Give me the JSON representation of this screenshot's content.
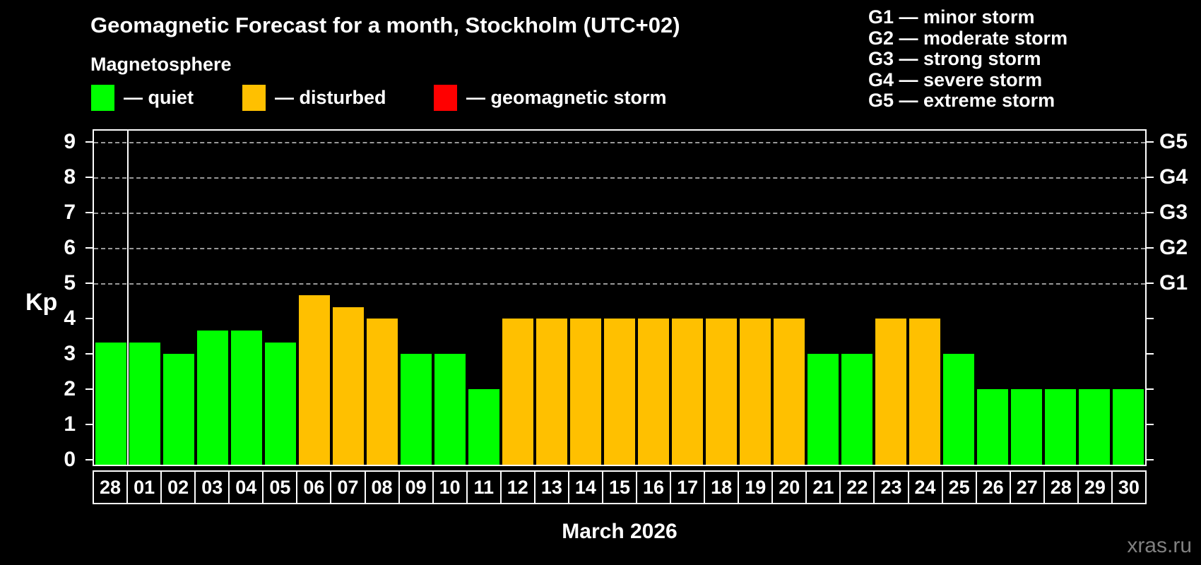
{
  "title": "Geomagnetic Forecast for a month, Stockholm (UTC+02)",
  "subtitle": "Magnetosphere",
  "kp_axis_label": "Kp",
  "month_label": "March 2026",
  "watermark": "xras.ru",
  "legend": {
    "items": [
      {
        "name": "quiet",
        "label": "— quiet",
        "color": "#00ff00",
        "x": 129
      },
      {
        "name": "disturbed",
        "label": "— disturbed",
        "color": "#ffc000",
        "x": 343
      },
      {
        "name": "storm",
        "label": "— geomagnetic storm",
        "color": "#ff0000",
        "x": 614
      }
    ]
  },
  "g_legend": {
    "items": [
      "G1 — minor storm",
      "G2 — moderate storm",
      "G3 — strong storm",
      "G4 — severe storm",
      "G5 — extreme storm"
    ]
  },
  "chart_data": {
    "type": "bar",
    "title": "Geomagnetic Forecast for a month, Stockholm (UTC+02)",
    "subtitle": "Magnetosphere",
    "xlabel": "March 2026",
    "ylabel": "Kp",
    "ylim": [
      0,
      9.4
    ],
    "grid": "dashed horizontal at Kp 5-9",
    "categories": [
      "28",
      "01",
      "02",
      "03",
      "04",
      "05",
      "06",
      "07",
      "08",
      "09",
      "10",
      "11",
      "12",
      "13",
      "14",
      "15",
      "16",
      "17",
      "18",
      "19",
      "20",
      "21",
      "22",
      "23",
      "24",
      "25",
      "26",
      "27",
      "28",
      "29",
      "30"
    ],
    "values": [
      3.33,
      3.33,
      3.0,
      3.67,
      3.67,
      3.33,
      4.67,
      4.33,
      4.0,
      3.0,
      3.0,
      2.0,
      4.0,
      4.0,
      4.0,
      4.0,
      4.0,
      4.0,
      4.0,
      4.0,
      4.0,
      3.0,
      3.0,
      4.0,
      4.0,
      3.0,
      2.0,
      2.0,
      2.0,
      2.0,
      2.0
    ],
    "statuses": [
      "quiet",
      "quiet",
      "quiet",
      "quiet",
      "quiet",
      "quiet",
      "disturbed",
      "disturbed",
      "disturbed",
      "quiet",
      "quiet",
      "quiet",
      "disturbed",
      "disturbed",
      "disturbed",
      "disturbed",
      "disturbed",
      "disturbed",
      "disturbed",
      "disturbed",
      "disturbed",
      "quiet",
      "quiet",
      "disturbed",
      "disturbed",
      "quiet",
      "quiet",
      "quiet",
      "quiet",
      "quiet",
      "quiet"
    ],
    "status_colors": {
      "quiet": "#00ff00",
      "disturbed": "#ffc000",
      "storm": "#ff0000"
    },
    "yticks": [
      0,
      1,
      2,
      3,
      4,
      5,
      6,
      7,
      8,
      9
    ],
    "gridline_kp": [
      5,
      6,
      7,
      8,
      9
    ],
    "right_axis_labels": [
      {
        "kp": 5,
        "label": "G1"
      },
      {
        "kp": 6,
        "label": "G2"
      },
      {
        "kp": 7,
        "label": "G3"
      },
      {
        "kp": 8,
        "label": "G4"
      },
      {
        "kp": 9,
        "label": "G5"
      }
    ],
    "month_divider_after_category_index": 0
  }
}
